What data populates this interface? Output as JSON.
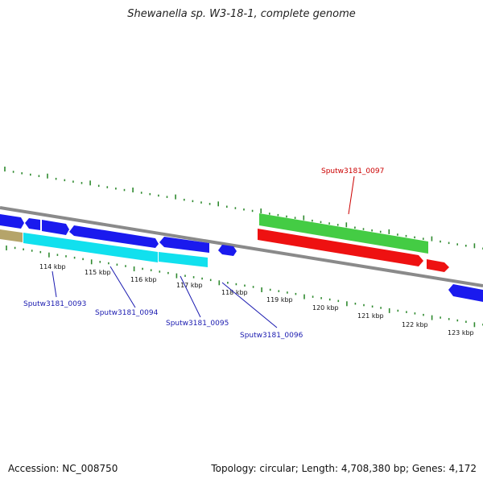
{
  "title": "Shewanella sp. W3-18-1, complete genome",
  "footer": {
    "accession": "Accession: NC_008750",
    "topology": "Topology: circular; Length: 4,708,380 bp; Genes: 4,172"
  },
  "colors": {
    "forward_cds": "#1a1aee",
    "reverse_cds": "#11e0ee",
    "rna_forward": "#44cc44",
    "rna_reverse": "#ee1111",
    "other": "#b5a46a",
    "backbone": "#8a8a8a",
    "ticks": "#2f8a2f",
    "label_blue": "#1a1ab0",
    "label_red": "#cc0000"
  },
  "scale_labels": [
    "114 kbp",
    "115 kbp",
    "116 kbp",
    "117 kbp",
    "118 kbp",
    "119 kbp",
    "120 kbp",
    "121 kbp",
    "122 kbp",
    "123 kbp"
  ],
  "gene_labels": [
    {
      "name": "Sputw3181_0093",
      "color": "blue"
    },
    {
      "name": "Sputw3181_0094",
      "color": "blue"
    },
    {
      "name": "Sputw3181_0095",
      "color": "blue"
    },
    {
      "name": "Sputw3181_0096",
      "color": "blue"
    },
    {
      "name": "Sputw3181_0097",
      "color": "red"
    }
  ]
}
